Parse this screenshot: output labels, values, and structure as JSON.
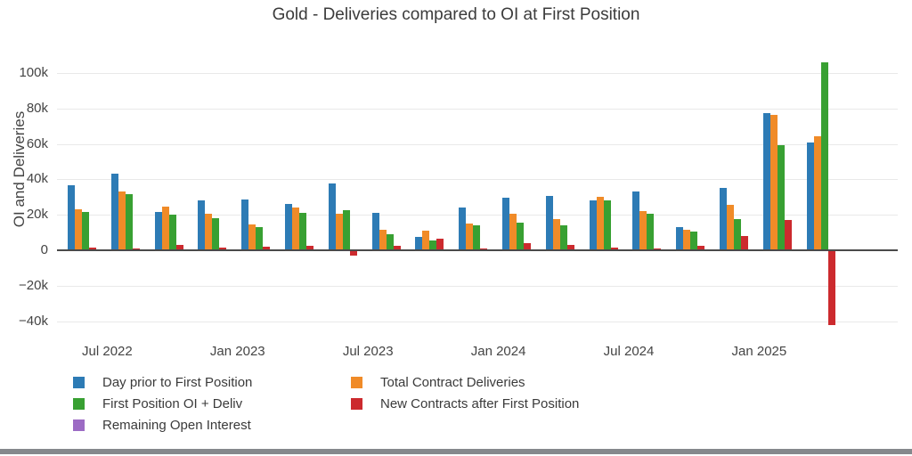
{
  "page": {
    "background": "#ffffff",
    "bottom_bar_color": "#85888c"
  },
  "chart_data": {
    "type": "bar",
    "title": "Gold - Deliveries compared to OI at First Position",
    "xlabel": "",
    "ylabel": "OI and Deliveries",
    "values_in": "thousands of contracts (k)",
    "ylim": [
      -45,
      113
    ],
    "grid": "horizontal",
    "legend_position": "bottom-left",
    "legend_columns": 2,
    "yticks": [
      {
        "label": "100k",
        "value": 100
      },
      {
        "label": "80k",
        "value": 80
      },
      {
        "label": "60k",
        "value": 60
      },
      {
        "label": "40k",
        "value": 40
      },
      {
        "label": "20k",
        "value": 20
      },
      {
        "label": "0",
        "value": 0
      },
      {
        "label": "−20k",
        "value": -20
      },
      {
        "label": "−40k",
        "value": -40
      }
    ],
    "xticks": [
      {
        "label": "Jul 2022",
        "month_offset": 1
      },
      {
        "label": "Jan 2023",
        "month_offset": 7
      },
      {
        "label": "Jul 2023",
        "month_offset": 13
      },
      {
        "label": "Jan 2024",
        "month_offset": 19
      },
      {
        "label": "Jul 2024",
        "month_offset": 25
      },
      {
        "label": "Jan 2025",
        "month_offset": 31
      }
    ],
    "categories": [
      "Jun 2022",
      "Aug 2022",
      "Oct 2022",
      "Dec 2022",
      "Feb 2023",
      "Apr 2023",
      "Jun 2023",
      "Aug 2023",
      "Oct 2023",
      "Dec 2023",
      "Feb 2024",
      "Apr 2024",
      "Jun 2024",
      "Aug 2024",
      "Oct 2024",
      "Dec 2024",
      "Feb 2025",
      "Apr 2025"
    ],
    "series": [
      {
        "name": "Day prior to First Position",
        "color": "#2d7bb5",
        "values": [
          36.6,
          43.4,
          21.8,
          27.9,
          28.7,
          26.2,
          37.5,
          20.9,
          7.7,
          24.2,
          29.7,
          30.5,
          28.2,
          33.4,
          13.0,
          35.2,
          77.6,
          60.9
        ]
      },
      {
        "name": "Total Contract Deliveries",
        "color": "#f08b28",
        "values": [
          23.3,
          33.3,
          24.5,
          20.6,
          14.7,
          23.9,
          20.5,
          11.7,
          11.0,
          15.0,
          20.4,
          17.7,
          30.4,
          22.0,
          11.7,
          25.7,
          76.3,
          64.2
        ]
      },
      {
        "name": "First Position OI + Deliv",
        "color": "#38a032",
        "values": [
          21.6,
          31.6,
          20.3,
          18.2,
          13.2,
          21.2,
          22.7,
          9.2,
          5.5,
          13.9,
          15.4,
          13.9,
          28.0,
          20.7,
          10.4,
          17.4,
          59.1,
          106.2
        ]
      },
      {
        "name": "New Contracts after First Position",
        "color": "#cc2a2e",
        "values": [
          1.4,
          1.2,
          2.9,
          1.7,
          2.0,
          2.7,
          -2.9,
          2.5,
          6.3,
          0.9,
          4.0,
          3.2,
          1.4,
          0.9,
          2.4,
          7.9,
          16.9,
          -42.0
        ]
      },
      {
        "name": "Remaining Open Interest",
        "color": "#9c6bc4",
        "values": [
          0,
          0,
          0,
          0,
          0,
          0,
          0,
          0,
          0,
          0,
          0,
          0,
          0,
          0,
          0,
          0,
          0,
          0
        ]
      }
    ]
  }
}
